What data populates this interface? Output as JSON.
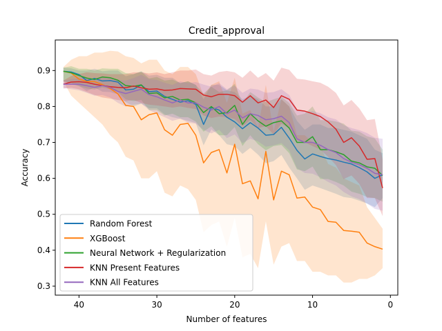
{
  "chart_data": {
    "type": "line",
    "title": "Credit_approval",
    "xlabel": "Number of features",
    "ylabel": "Accuracy",
    "xlim": [
      43.05,
      -0.95
    ],
    "ylim": [
      0.275,
      0.985
    ],
    "x_inverted": true,
    "xticks": [
      40,
      30,
      20,
      10,
      0
    ],
    "yticks": [
      0.3,
      0.4,
      0.5,
      0.6,
      0.7,
      0.8,
      0.9
    ],
    "legend_position": "lower-left",
    "x": [
      42,
      41,
      40,
      39,
      38,
      37,
      36,
      35,
      34,
      33,
      32,
      31,
      30,
      29,
      28,
      27,
      26,
      25,
      24,
      23,
      22,
      21,
      20,
      19,
      18,
      17,
      16,
      15,
      14,
      13,
      12,
      11,
      10,
      9,
      8,
      7,
      6,
      5,
      4,
      3,
      2,
      1
    ],
    "series": [
      {
        "name": "Random Forest",
        "color": "#1f77b4",
        "values": [
          0.898,
          0.896,
          0.889,
          0.872,
          0.878,
          0.871,
          0.872,
          0.868,
          0.846,
          0.848,
          0.86,
          0.841,
          0.843,
          0.828,
          0.82,
          0.812,
          0.816,
          0.806,
          0.75,
          0.797,
          0.79,
          0.77,
          0.757,
          0.738,
          0.755,
          0.74,
          0.72,
          0.722,
          0.742,
          0.712,
          0.678,
          0.654,
          0.668,
          0.661,
          0.655,
          0.651,
          0.645,
          0.64,
          0.63,
          0.618,
          0.6,
          0.61
        ],
        "lower": [
          0.87,
          0.862,
          0.857,
          0.843,
          0.853,
          0.841,
          0.84,
          0.834,
          0.812,
          0.8,
          0.808,
          0.795,
          0.795,
          0.778,
          0.77,
          0.766,
          0.76,
          0.754,
          0.692,
          0.736,
          0.72,
          0.695,
          0.69,
          0.668,
          0.685,
          0.666,
          0.642,
          0.648,
          0.665,
          0.63,
          0.6,
          0.568,
          0.58,
          0.573,
          0.565,
          0.557,
          0.548,
          0.545,
          0.538,
          0.53,
          0.52,
          0.545
        ],
        "upper": [
          0.908,
          0.906,
          0.9,
          0.9,
          0.905,
          0.898,
          0.9,
          0.9,
          0.884,
          0.89,
          0.898,
          0.886,
          0.888,
          0.88,
          0.88,
          0.865,
          0.87,
          0.86,
          0.82,
          0.86,
          0.86,
          0.845,
          0.84,
          0.82,
          0.83,
          0.82,
          0.8,
          0.8,
          0.82,
          0.8,
          0.76,
          0.735,
          0.75,
          0.75,
          0.74,
          0.74,
          0.735,
          0.73,
          0.72,
          0.71,
          0.68,
          0.67
        ]
      },
      {
        "name": "XGBoost",
        "color": "#ff7f0e",
        "values": [
          0.898,
          0.893,
          0.876,
          0.87,
          0.869,
          0.861,
          0.85,
          0.835,
          0.803,
          0.8,
          0.763,
          0.777,
          0.782,
          0.735,
          0.72,
          0.75,
          0.753,
          0.72,
          0.643,
          0.672,
          0.68,
          0.615,
          0.695,
          0.585,
          0.593,
          0.543,
          0.675,
          0.54,
          0.62,
          0.61,
          0.545,
          0.548,
          0.52,
          0.513,
          0.48,
          0.478,
          0.455,
          0.453,
          0.45,
          0.42,
          0.41,
          0.403
        ],
        "lower": [
          0.87,
          0.83,
          0.81,
          0.79,
          0.77,
          0.75,
          0.72,
          0.7,
          0.66,
          0.65,
          0.6,
          0.6,
          0.62,
          0.56,
          0.55,
          0.58,
          0.57,
          0.54,
          0.45,
          0.47,
          0.48,
          0.41,
          0.49,
          0.38,
          0.39,
          0.35,
          0.48,
          0.36,
          0.41,
          0.42,
          0.37,
          0.37,
          0.34,
          0.34,
          0.33,
          0.33,
          0.31,
          0.31,
          0.32,
          0.32,
          0.33,
          0.35
        ],
        "upper": [
          0.91,
          0.93,
          0.94,
          0.94,
          0.95,
          0.95,
          0.955,
          0.953,
          0.94,
          0.935,
          0.92,
          0.93,
          0.93,
          0.9,
          0.89,
          0.91,
          0.91,
          0.89,
          0.83,
          0.86,
          0.87,
          0.81,
          0.88,
          0.78,
          0.79,
          0.74,
          0.86,
          0.73,
          0.82,
          0.8,
          0.72,
          0.72,
          0.7,
          0.69,
          0.64,
          0.63,
          0.6,
          0.59,
          0.58,
          0.52,
          0.49,
          0.46
        ]
      },
      {
        "name": "Neural Network + Regularization",
        "color": "#2ca02c",
        "values": [
          0.898,
          0.894,
          0.886,
          0.879,
          0.875,
          0.882,
          0.88,
          0.873,
          0.858,
          0.856,
          0.86,
          0.836,
          0.838,
          0.824,
          0.828,
          0.818,
          0.82,
          0.81,
          0.783,
          0.8,
          0.78,
          0.783,
          0.803,
          0.75,
          0.78,
          0.76,
          0.745,
          0.755,
          0.76,
          0.74,
          0.7,
          0.7,
          0.716,
          0.68,
          0.68,
          0.674,
          0.666,
          0.648,
          0.643,
          0.632,
          0.628,
          0.608
        ],
        "lower": [
          0.87,
          0.865,
          0.857,
          0.85,
          0.847,
          0.853,
          0.848,
          0.84,
          0.82,
          0.815,
          0.818,
          0.79,
          0.79,
          0.775,
          0.78,
          0.77,
          0.77,
          0.758,
          0.73,
          0.745,
          0.72,
          0.72,
          0.743,
          0.69,
          0.72,
          0.695,
          0.678,
          0.69,
          0.693,
          0.67,
          0.625,
          0.62,
          0.633,
          0.598,
          0.598,
          0.59,
          0.58,
          0.563,
          0.557,
          0.548,
          0.545,
          0.535
        ],
        "upper": [
          0.908,
          0.912,
          0.905,
          0.905,
          0.9,
          0.906,
          0.905,
          0.905,
          0.893,
          0.89,
          0.897,
          0.878,
          0.882,
          0.872,
          0.875,
          0.865,
          0.87,
          0.86,
          0.836,
          0.855,
          0.84,
          0.845,
          0.863,
          0.81,
          0.84,
          0.825,
          0.812,
          0.82,
          0.827,
          0.81,
          0.775,
          0.78,
          0.8,
          0.762,
          0.762,
          0.758,
          0.752,
          0.733,
          0.73,
          0.717,
          0.711,
          0.68
        ]
      },
      {
        "name": "KNN Present Features",
        "color": "#d62728",
        "values": [
          0.862,
          0.868,
          0.869,
          0.867,
          0.862,
          0.858,
          0.855,
          0.853,
          0.852,
          0.857,
          0.852,
          0.848,
          0.849,
          0.845,
          0.846,
          0.85,
          0.849,
          0.848,
          0.832,
          0.827,
          0.834,
          0.834,
          0.83,
          0.812,
          0.83,
          0.81,
          0.818,
          0.797,
          0.83,
          0.82,
          0.79,
          0.787,
          0.78,
          0.772,
          0.757,
          0.737,
          0.7,
          0.713,
          0.69,
          0.653,
          0.655,
          0.573
        ],
        "lower": [
          0.85,
          0.852,
          0.848,
          0.84,
          0.832,
          0.825,
          0.822,
          0.818,
          0.815,
          0.818,
          0.81,
          0.805,
          0.803,
          0.8,
          0.797,
          0.8,
          0.796,
          0.793,
          0.775,
          0.768,
          0.772,
          0.77,
          0.765,
          0.745,
          0.762,
          0.74,
          0.745,
          0.722,
          0.752,
          0.74,
          0.705,
          0.7,
          0.69,
          0.68,
          0.66,
          0.637,
          0.598,
          0.608,
          0.585,
          0.545,
          0.545,
          0.495
        ],
        "upper": [
          0.872,
          0.885,
          0.89,
          0.895,
          0.893,
          0.892,
          0.89,
          0.89,
          0.89,
          0.895,
          0.895,
          0.892,
          0.895,
          0.89,
          0.895,
          0.9,
          0.9,
          0.903,
          0.89,
          0.886,
          0.896,
          0.899,
          0.895,
          0.88,
          0.9,
          0.88,
          0.893,
          0.872,
          0.908,
          0.902,
          0.877,
          0.875,
          0.87,
          0.866,
          0.855,
          0.838,
          0.803,
          0.818,
          0.795,
          0.762,
          0.765,
          0.652
        ]
      },
      {
        "name": "KNN All Features",
        "color": "#9467bd",
        "values": [
          0.862,
          0.862,
          0.862,
          0.858,
          0.853,
          0.858,
          0.853,
          0.842,
          0.836,
          0.842,
          0.848,
          0.833,
          0.827,
          0.818,
          0.81,
          0.818,
          0.81,
          0.81,
          0.798,
          0.79,
          0.8,
          0.78,
          0.79,
          0.768,
          0.78,
          0.775,
          0.763,
          0.766,
          0.773,
          0.755,
          0.71,
          0.7,
          0.7,
          0.692,
          0.68,
          0.672,
          0.655,
          0.645,
          0.638,
          0.628,
          0.614,
          0.61
        ],
        "lower": [
          0.852,
          0.848,
          0.845,
          0.838,
          0.83,
          0.832,
          0.825,
          0.81,
          0.8,
          0.805,
          0.808,
          0.79,
          0.78,
          0.77,
          0.76,
          0.766,
          0.755,
          0.752,
          0.735,
          0.725,
          0.735,
          0.712,
          0.722,
          0.698,
          0.71,
          0.703,
          0.688,
          0.692,
          0.698,
          0.678,
          0.628,
          0.615,
          0.613,
          0.603,
          0.59,
          0.58,
          0.562,
          0.55,
          0.542,
          0.53,
          0.515,
          0.51
        ],
        "upper": [
          0.872,
          0.876,
          0.879,
          0.878,
          0.876,
          0.884,
          0.881,
          0.874,
          0.872,
          0.879,
          0.888,
          0.876,
          0.874,
          0.866,
          0.86,
          0.87,
          0.865,
          0.868,
          0.861,
          0.855,
          0.865,
          0.848,
          0.858,
          0.838,
          0.85,
          0.847,
          0.838,
          0.84,
          0.848,
          0.832,
          0.792,
          0.785,
          0.787,
          0.781,
          0.77,
          0.764,
          0.748,
          0.74,
          0.734,
          0.726,
          0.713,
          0.71
        ]
      }
    ]
  }
}
